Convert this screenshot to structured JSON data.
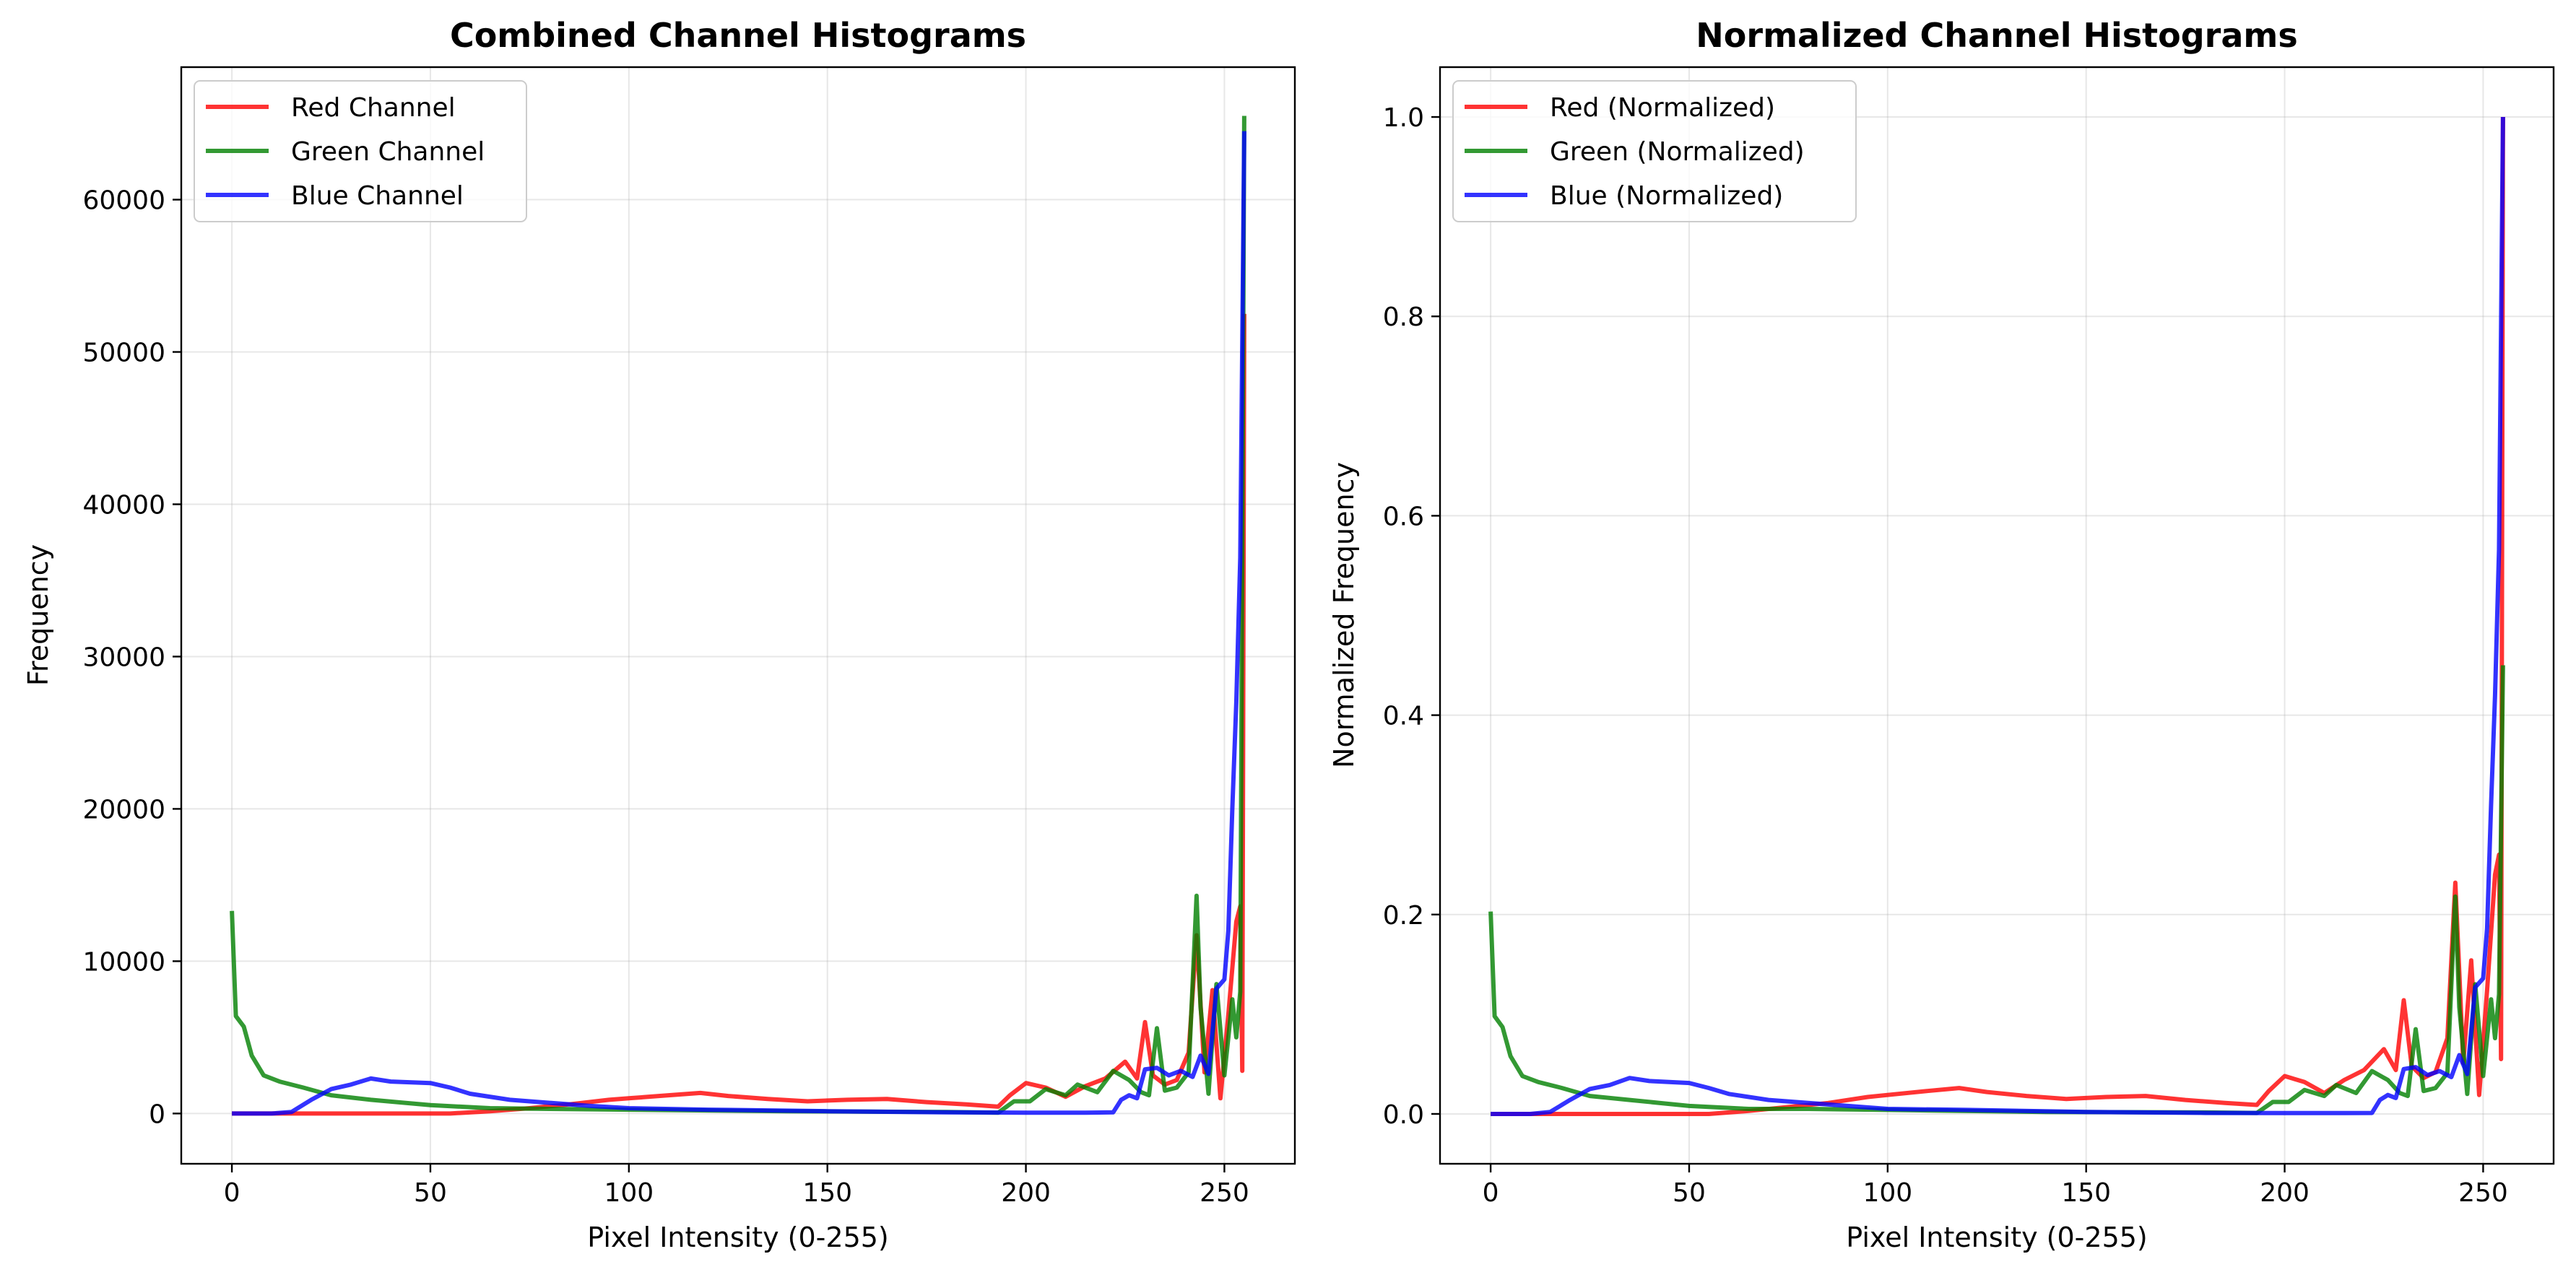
{
  "chart_data": [
    {
      "type": "line",
      "title": "Combined Channel Histograms",
      "xlabel": "Pixel Intensity (0-255)",
      "ylabel": "Frequency",
      "xlim": [
        -12.75,
        267.75
      ],
      "ylim": [
        -3300,
        68700
      ],
      "xticks": [
        0,
        50,
        100,
        150,
        200,
        250
      ],
      "yticks": [
        0,
        10000,
        20000,
        30000,
        40000,
        50000,
        60000
      ],
      "grid": true,
      "legend_position": "upper left",
      "series": [
        {
          "name": "Red Channel",
          "color": "#ff0000",
          "points": [
            [
              0,
              0
            ],
            [
              30,
              0
            ],
            [
              55,
              0
            ],
            [
              65,
              150
            ],
            [
              75,
              350
            ],
            [
              85,
              600
            ],
            [
              95,
              900
            ],
            [
              100,
              1000
            ],
            [
              110,
              1200
            ],
            [
              118,
              1350
            ],
            [
              125,
              1150
            ],
            [
              135,
              950
            ],
            [
              145,
              800
            ],
            [
              155,
              900
            ],
            [
              165,
              950
            ],
            [
              175,
              750
            ],
            [
              185,
              600
            ],
            [
              193,
              450
            ],
            [
              196,
              1200
            ],
            [
              200,
              2000
            ],
            [
              205,
              1700
            ],
            [
              210,
              1100
            ],
            [
              215,
              1800
            ],
            [
              220,
              2300
            ],
            [
              225,
              3400
            ],
            [
              228,
              2300
            ],
            [
              230,
              6000
            ],
            [
              232,
              2500
            ],
            [
              235,
              1900
            ],
            [
              238,
              2200
            ],
            [
              241,
              4000
            ],
            [
              243,
              11700
            ],
            [
              245,
              2700
            ],
            [
              247,
              8100
            ],
            [
              249,
              1000
            ],
            [
              251,
              6500
            ],
            [
              253,
              12600
            ],
            [
              254,
              13600
            ],
            [
              254.5,
              2800
            ],
            [
              255,
              52500
            ]
          ]
        },
        {
          "name": "Green Channel",
          "color": "#008000",
          "points": [
            [
              0,
              13300
            ],
            [
              1,
              6400
            ],
            [
              3,
              5700
            ],
            [
              5,
              3800
            ],
            [
              8,
              2500
            ],
            [
              12,
              2100
            ],
            [
              18,
              1700
            ],
            [
              25,
              1200
            ],
            [
              35,
              900
            ],
            [
              50,
              550
            ],
            [
              65,
              350
            ],
            [
              80,
              300
            ],
            [
              100,
              250
            ],
            [
              140,
              150
            ],
            [
              180,
              100
            ],
            [
              193,
              50
            ],
            [
              197,
              800
            ],
            [
              201,
              800
            ],
            [
              205,
              1600
            ],
            [
              210,
              1200
            ],
            [
              213,
              1900
            ],
            [
              218,
              1400
            ],
            [
              222,
              2800
            ],
            [
              226,
              2200
            ],
            [
              229,
              1400
            ],
            [
              231,
              1200
            ],
            [
              233,
              5600
            ],
            [
              235,
              1500
            ],
            [
              238,
              1700
            ],
            [
              241,
              2700
            ],
            [
              243,
              14300
            ],
            [
              244,
              7000
            ],
            [
              246,
              1300
            ],
            [
              248,
              8500
            ],
            [
              250,
              2500
            ],
            [
              252,
              7500
            ],
            [
              253,
              5000
            ],
            [
              254,
              8000
            ],
            [
              255,
              65500
            ]
          ]
        },
        {
          "name": "Blue Channel",
          "color": "#0000ff",
          "points": [
            [
              0,
              0
            ],
            [
              10,
              0
            ],
            [
              15,
              100
            ],
            [
              20,
              900
            ],
            [
              25,
              1600
            ],
            [
              30,
              1900
            ],
            [
              35,
              2300
            ],
            [
              40,
              2100
            ],
            [
              50,
              2000
            ],
            [
              55,
              1700
            ],
            [
              60,
              1300
            ],
            [
              70,
              900
            ],
            [
              80,
              700
            ],
            [
              90,
              500
            ],
            [
              100,
              350
            ],
            [
              120,
              250
            ],
            [
              150,
              150
            ],
            [
              180,
              80
            ],
            [
              200,
              50
            ],
            [
              215,
              50
            ],
            [
              222,
              80
            ],
            [
              224,
              900
            ],
            [
              226,
              1200
            ],
            [
              228,
              1000
            ],
            [
              230,
              2900
            ],
            [
              233,
              3000
            ],
            [
              236,
              2500
            ],
            [
              239,
              2800
            ],
            [
              242,
              2400
            ],
            [
              244,
              3800
            ],
            [
              246,
              2600
            ],
            [
              248,
              8200
            ],
            [
              250,
              8800
            ],
            [
              251,
              12000
            ],
            [
              252,
              20000
            ],
            [
              253,
              27000
            ],
            [
              254,
              36500
            ],
            [
              255,
              64500
            ]
          ]
        }
      ]
    },
    {
      "type": "line",
      "title": "Normalized Channel Histograms",
      "xlabel": "Pixel Intensity (0-255)",
      "ylabel": "Normalized Frequency",
      "xlim": [
        -12.75,
        267.75
      ],
      "ylim": [
        -0.05,
        1.05
      ],
      "xticks": [
        0,
        50,
        100,
        150,
        200,
        250
      ],
      "yticks": [
        0.0,
        0.2,
        0.4,
        0.6,
        0.8,
        1.0
      ],
      "grid": true,
      "legend_position": "upper left",
      "series": [
        {
          "name": "Red (Normalized)",
          "color": "#ff0000",
          "points": [
            [
              0,
              0
            ],
            [
              30,
              0
            ],
            [
              55,
              0
            ],
            [
              65,
              0.003
            ],
            [
              75,
              0.007
            ],
            [
              85,
              0.011
            ],
            [
              95,
              0.017
            ],
            [
              100,
              0.019
            ],
            [
              110,
              0.023
            ],
            [
              118,
              0.026
            ],
            [
              125,
              0.022
            ],
            [
              135,
              0.018
            ],
            [
              145,
              0.015
            ],
            [
              155,
              0.017
            ],
            [
              165,
              0.018
            ],
            [
              175,
              0.014
            ],
            [
              185,
              0.011
            ],
            [
              193,
              0.009
            ],
            [
              196,
              0.023
            ],
            [
              200,
              0.038
            ],
            [
              205,
              0.032
            ],
            [
              210,
              0.021
            ],
            [
              215,
              0.034
            ],
            [
              220,
              0.044
            ],
            [
              225,
              0.065
            ],
            [
              228,
              0.044
            ],
            [
              230,
              0.114
            ],
            [
              232,
              0.048
            ],
            [
              235,
              0.036
            ],
            [
              238,
              0.042
            ],
            [
              241,
              0.076
            ],
            [
              243,
              0.232
            ],
            [
              245,
              0.051
            ],
            [
              247,
              0.154
            ],
            [
              249,
              0.019
            ],
            [
              251,
              0.124
            ],
            [
              253,
              0.24
            ],
            [
              254,
              0.26
            ],
            [
              254.5,
              0.055
            ],
            [
              255,
              1.0
            ]
          ]
        },
        {
          "name": "Green (Normalized)",
          "color": "#008000",
          "points": [
            [
              0,
              0.203
            ],
            [
              1,
              0.098
            ],
            [
              3,
              0.087
            ],
            [
              5,
              0.058
            ],
            [
              8,
              0.038
            ],
            [
              12,
              0.032
            ],
            [
              18,
              0.026
            ],
            [
              25,
              0.018
            ],
            [
              35,
              0.014
            ],
            [
              50,
              0.008
            ],
            [
              65,
              0.005
            ],
            [
              80,
              0.005
            ],
            [
              100,
              0.004
            ],
            [
              140,
              0.002
            ],
            [
              180,
              0.0015
            ],
            [
              193,
              0.001
            ],
            [
              197,
              0.012
            ],
            [
              201,
              0.012
            ],
            [
              205,
              0.024
            ],
            [
              210,
              0.018
            ],
            [
              213,
              0.029
            ],
            [
              218,
              0.021
            ],
            [
              222,
              0.043
            ],
            [
              226,
              0.034
            ],
            [
              229,
              0.021
            ],
            [
              231,
              0.018
            ],
            [
              233,
              0.085
            ],
            [
              235,
              0.023
            ],
            [
              238,
              0.026
            ],
            [
              241,
              0.041
            ],
            [
              243,
              0.218
            ],
            [
              244,
              0.107
            ],
            [
              246,
              0.02
            ],
            [
              248,
              0.13
            ],
            [
              250,
              0.038
            ],
            [
              252,
              0.115
            ],
            [
              253,
              0.076
            ],
            [
              254,
              0.12
            ],
            [
              255,
              0.45
            ]
          ]
        },
        {
          "name": "Blue (Normalized)",
          "color": "#0000ff",
          "points": [
            [
              0,
              0
            ],
            [
              10,
              0
            ],
            [
              15,
              0.002
            ],
            [
              20,
              0.014
            ],
            [
              25,
              0.025
            ],
            [
              30,
              0.029
            ],
            [
              35,
              0.036
            ],
            [
              40,
              0.033
            ],
            [
              50,
              0.031
            ],
            [
              55,
              0.026
            ],
            [
              60,
              0.02
            ],
            [
              70,
              0.014
            ],
            [
              80,
              0.011
            ],
            [
              90,
              0.008
            ],
            [
              100,
              0.005
            ],
            [
              120,
              0.004
            ],
            [
              150,
              0.002
            ],
            [
              180,
              0.001
            ],
            [
              200,
              0.0008
            ],
            [
              215,
              0.0008
            ],
            [
              222,
              0.001
            ],
            [
              224,
              0.014
            ],
            [
              226,
              0.019
            ],
            [
              228,
              0.016
            ],
            [
              230,
              0.045
            ],
            [
              233,
              0.047
            ],
            [
              236,
              0.039
            ],
            [
              239,
              0.043
            ],
            [
              242,
              0.037
            ],
            [
              244,
              0.059
            ],
            [
              246,
              0.04
            ],
            [
              248,
              0.127
            ],
            [
              250,
              0.136
            ],
            [
              251,
              0.186
            ],
            [
              252,
              0.31
            ],
            [
              253,
              0.42
            ],
            [
              254,
              0.566
            ],
            [
              255,
              1.0
            ]
          ]
        }
      ]
    }
  ]
}
